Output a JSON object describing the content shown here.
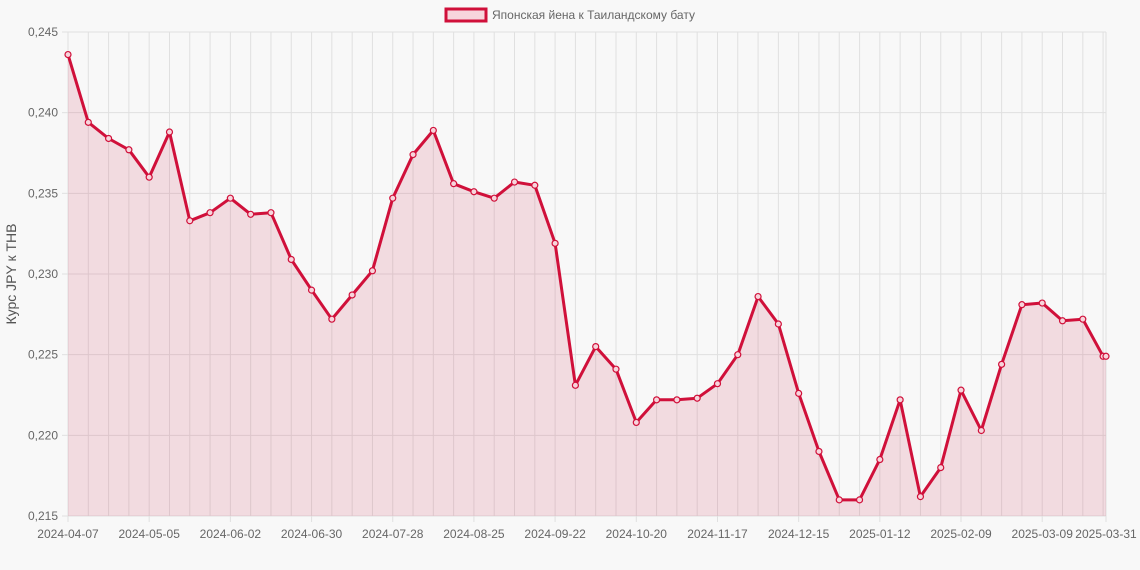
{
  "colors": {
    "line": "#d0103a",
    "fill": "rgba(208,16,58,0.12)",
    "legend_fill": "#f7d5dc",
    "grid": "#e0e0e0",
    "background": "#f8f8f8"
  },
  "chart_data": {
    "type": "area",
    "title": "",
    "xlabel": "",
    "ylabel": "Курс JPY к THB",
    "ylim": [
      0.215,
      0.245
    ],
    "y_ticks": [
      "0,245",
      "0,240",
      "0,235",
      "0,230",
      "0,225",
      "0,220",
      "0,215"
    ],
    "x_tick_labels": [
      "2024-04-07",
      "2024-05-05",
      "2024-06-02",
      "2024-06-30",
      "2024-07-28",
      "2024-08-25",
      "2024-09-22",
      "2024-10-20",
      "2024-11-17",
      "2024-12-15",
      "2025-01-12",
      "2025-02-09",
      "2025-03-09",
      "2025-03-31"
    ],
    "legend_position": "top-center",
    "grid": true,
    "series": [
      {
        "name": "Японская йена к Таиландскому бату",
        "x": [
          "2024-04-07",
          "2024-04-14",
          "2024-04-21",
          "2024-04-28",
          "2024-05-05",
          "2024-05-12",
          "2024-05-19",
          "2024-05-26",
          "2024-06-02",
          "2024-06-09",
          "2024-06-16",
          "2024-06-23",
          "2024-06-30",
          "2024-07-07",
          "2024-07-14",
          "2024-07-21",
          "2024-07-28",
          "2024-08-04",
          "2024-08-11",
          "2024-08-18",
          "2024-08-25",
          "2024-09-01",
          "2024-09-08",
          "2024-09-15",
          "2024-09-22",
          "2024-09-29",
          "2024-10-06",
          "2024-10-13",
          "2024-10-20",
          "2024-10-27",
          "2024-11-03",
          "2024-11-10",
          "2024-11-17",
          "2024-11-24",
          "2024-12-01",
          "2024-12-08",
          "2024-12-15",
          "2024-12-22",
          "2024-12-29",
          "2025-01-05",
          "2025-01-12",
          "2025-01-19",
          "2025-01-26",
          "2025-02-02",
          "2025-02-09",
          "2025-02-16",
          "2025-02-23",
          "2025-03-02",
          "2025-03-09",
          "2025-03-16",
          "2025-03-23",
          "2025-03-30",
          "2025-03-31"
        ],
        "values": [
          0.2436,
          0.2394,
          0.2384,
          0.2377,
          0.236,
          0.2388,
          0.2333,
          0.2338,
          0.2347,
          0.2337,
          0.2338,
          0.2309,
          0.229,
          0.2272,
          0.2287,
          0.2302,
          0.2347,
          0.2374,
          0.2389,
          0.2356,
          0.2351,
          0.2347,
          0.2357,
          0.2355,
          0.2319,
          0.2231,
          0.2255,
          0.2241,
          0.2208,
          0.2222,
          0.2222,
          0.2223,
          0.2232,
          0.225,
          0.2286,
          0.2269,
          0.2226,
          0.219,
          0.216,
          0.216,
          0.2185,
          0.2222,
          0.2162,
          0.218,
          0.2228,
          0.2203,
          0.2244,
          0.2281,
          0.2282,
          0.2271,
          0.2272,
          0.2249,
          0.2249
        ]
      }
    ]
  }
}
